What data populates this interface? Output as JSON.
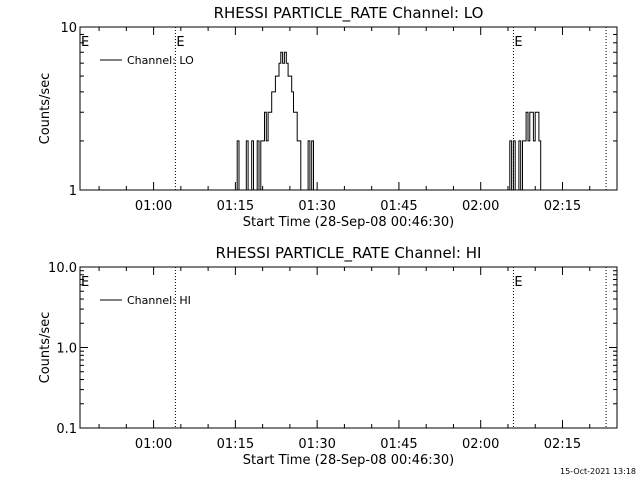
{
  "chart_data": [
    {
      "type": "line",
      "title": "RHESSI PARTICLE_RATE Channel: LO",
      "xlabel": "Start Time (28-Sep-08 00:46:30)",
      "ylabel": "Counts/sec",
      "yscale": "log",
      "ylim": [
        1,
        10
      ],
      "y_ticks": [
        1,
        10
      ],
      "y_tick_labels": [
        "1",
        "10"
      ],
      "xlim": [
        "00:46:30",
        "02:25:00"
      ],
      "x_ticks": [
        "01:00",
        "01:15",
        "01:30",
        "01:45",
        "02:00",
        "02:15"
      ],
      "x_tick_labels": [
        "01:00",
        "01:15",
        "01:30",
        "01:45",
        "02:00",
        "02:15"
      ],
      "grid": false,
      "legend_position": "top-left",
      "markers": [
        {
          "time": "01:04",
          "label": "E"
        },
        {
          "time": "02:06",
          "label": "E"
        },
        {
          "time": "02:23",
          "label": ""
        }
      ],
      "edge_label": "E",
      "series": [
        {
          "name": "Channel: LO",
          "x": [
            "01:15:00",
            "01:15:20",
            "01:15:40",
            "01:16:00",
            "01:16:20",
            "01:16:40",
            "01:17:00",
            "01:17:20",
            "01:17:40",
            "01:18:00",
            "01:18:20",
            "01:18:40",
            "01:19:00",
            "01:19:20",
            "01:19:40",
            "01:20:00",
            "01:20:20",
            "01:20:40",
            "01:21:00",
            "01:21:20",
            "01:21:40",
            "01:22:00",
            "01:22:20",
            "01:22:40",
            "01:23:00",
            "01:23:20",
            "01:23:40",
            "01:24:00",
            "01:24:20",
            "01:24:40",
            "01:25:00",
            "01:25:20",
            "01:25:40",
            "01:26:00",
            "01:26:20",
            "01:26:40",
            "01:27:00",
            "01:27:20",
            "01:27:40",
            "01:28:00",
            "01:28:20",
            "01:28:40",
            "01:29:00",
            "01:29:20",
            "01:29:40",
            "01:30:00",
            "02:05:00",
            "02:05:20",
            "02:05:40",
            "02:06:00",
            "02:06:20",
            "02:06:40",
            "02:07:00",
            "02:07:20",
            "02:07:40",
            "02:08:00",
            "02:08:20",
            "02:08:40",
            "02:09:00",
            "02:09:20",
            "02:09:40",
            "02:10:00",
            "02:10:20",
            "02:10:40",
            "02:11:00",
            "02:11:20",
            "02:11:40"
          ],
          "values": [
            1,
            2,
            1,
            1,
            1,
            1,
            2,
            1,
            1,
            2,
            1,
            1,
            2,
            1,
            2,
            2,
            3,
            2,
            3,
            3,
            4,
            4,
            5,
            5,
            6,
            7,
            6,
            7,
            6,
            5,
            5,
            4,
            3,
            3,
            2,
            2,
            1,
            1,
            1,
            1,
            2,
            1,
            2,
            1,
            1,
            1,
            1,
            2,
            1,
            2,
            1,
            1,
            2,
            1,
            2,
            2,
            3,
            2,
            3,
            3,
            2,
            3,
            3,
            2,
            1,
            1,
            1
          ]
        }
      ]
    },
    {
      "type": "line",
      "title": "RHESSI PARTICLE_RATE Channel: HI",
      "xlabel": "Start Time (28-Sep-08 00:46:30)",
      "ylabel": "Counts/sec",
      "yscale": "log",
      "ylim": [
        0.1,
        10
      ],
      "y_ticks": [
        0.1,
        1,
        10
      ],
      "y_tick_labels": [
        "0.1",
        "1.0",
        "10.0"
      ],
      "xlim": [
        "00:46:30",
        "02:25:00"
      ],
      "x_ticks": [
        "01:00",
        "01:15",
        "01:30",
        "01:45",
        "02:00",
        "02:15"
      ],
      "x_tick_labels": [
        "01:00",
        "01:15",
        "01:30",
        "01:45",
        "02:00",
        "02:15"
      ],
      "grid": false,
      "legend_position": "top-left",
      "markers": [
        {
          "time": "01:04",
          "label": ""
        },
        {
          "time": "02:06",
          "label": "E"
        },
        {
          "time": "02:23",
          "label": ""
        }
      ],
      "edge_label": "E",
      "series": [
        {
          "name": "Channel: HI",
          "x": [],
          "values": []
        }
      ]
    }
  ],
  "footer": {
    "timestamp": "15-Oct-2021 13:18"
  }
}
